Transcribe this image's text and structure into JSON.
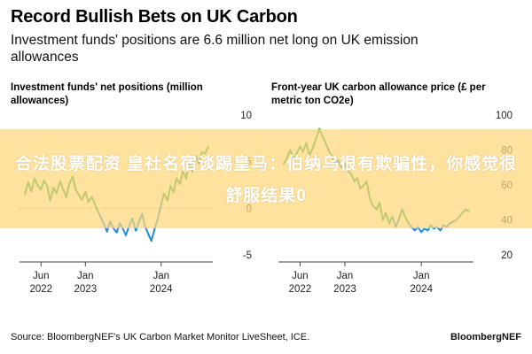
{
  "title": "Record Bullish Bets on UK Carbon",
  "subtitle": "Investment funds' positions are 6.6 million net long on UK emission allowances",
  "source": "Source: BloombergNEF's UK Carbon Market Monitor LiveSheet, ICE.",
  "brand": "BloombergNEF",
  "overlay_text": "合法股票配资 皇社名宿谈踢皇马：伯纳乌很有欺骗性，你感觉很舒服结果0",
  "colors": {
    "positive": "#25a55b",
    "negative": "#1f8fd4",
    "zero_line": "#888888"
  },
  "chart_data": [
    {
      "type": "line",
      "title": "Investment funds' net positions (million allowances)",
      "x_ticks": [
        {
          "label": [
            "Jun",
            "2022"
          ],
          "date": "2022-06-01"
        },
        {
          "label": [
            "Jan",
            "2023"
          ],
          "date": "2023-01-01"
        },
        {
          "label": [
            "Jan",
            "2024"
          ],
          "date": "2024-01-01"
        }
      ],
      "y_ticks": [
        10,
        5,
        0,
        -5
      ],
      "ylim": [
        -5,
        10
      ],
      "y_axis_side": "right",
      "series": [
        {
          "x": [
            "2022-03-15",
            "2022-04-01",
            "2022-04-15",
            "2022-05-01",
            "2022-05-15",
            "2022-06-01",
            "2022-06-15",
            "2022-07-01",
            "2022-07-15",
            "2022-08-01",
            "2022-08-15",
            "2022-09-01",
            "2022-09-15",
            "2022-10-01",
            "2022-10-15",
            "2022-11-01",
            "2022-11-15",
            "2022-12-01",
            "2022-12-15",
            "2023-01-01",
            "2023-01-15",
            "2023-02-01",
            "2023-02-15",
            "2023-03-01",
            "2023-03-15",
            "2023-04-01",
            "2023-04-15",
            "2023-05-01",
            "2023-05-15",
            "2023-06-01",
            "2023-06-15",
            "2023-07-01",
            "2023-07-15",
            "2023-08-01",
            "2023-08-15",
            "2023-09-01",
            "2023-09-15",
            "2023-10-01",
            "2023-10-15",
            "2023-11-01",
            "2023-11-15",
            "2023-12-01",
            "2023-12-15",
            "2024-01-01",
            "2024-01-15",
            "2024-02-01",
            "2024-02-15",
            "2024-03-01",
            "2024-03-15",
            "2024-04-01",
            "2024-04-15",
            "2024-05-01",
            "2024-05-15",
            "2024-06-01",
            "2024-06-15",
            "2024-07-01",
            "2024-07-15",
            "2024-08-01",
            "2024-08-15"
          ],
          "y": [
            1.5,
            2.8,
            1.8,
            3.2,
            2.5,
            2.0,
            3.0,
            2.4,
            0.8,
            2.2,
            1.6,
            2.9,
            2.1,
            1.2,
            2.6,
            3.4,
            2.0,
            1.4,
            0.9,
            1.8,
            0.7,
            1.2,
            0.5,
            -0.3,
            -0.9,
            -1.7,
            -2.5,
            -1.4,
            -2.1,
            -2.6,
            -1.6,
            -2.2,
            -2.9,
            -1.8,
            -1.1,
            -2.4,
            -1.5,
            -0.6,
            -1.9,
            -2.8,
            -3.5,
            -2.2,
            -1.2,
            0.4,
            1.6,
            0.8,
            2.4,
            1.7,
            3.2,
            2.6,
            4.0,
            3.2,
            4.9,
            3.9,
            5.6,
            4.8,
            6.0,
            5.9,
            6.6
          ]
        }
      ]
    },
    {
      "type": "line",
      "title": "Front-year UK carbon allowance price (£ per metric ton CO2e)",
      "x_ticks": [
        {
          "label": [
            "Jun",
            "2022"
          ],
          "date": "2022-06-01"
        },
        {
          "label": [
            "Jan",
            "2023"
          ],
          "date": "2023-01-01"
        },
        {
          "label": [
            "Jan",
            "2024"
          ],
          "date": "2024-01-01"
        }
      ],
      "y_ticks": [
        100,
        80,
        60,
        40,
        20
      ],
      "ylim": [
        20,
        100
      ],
      "y_axis_side": "right",
      "series": [
        {
          "x": [
            "2022-03-15",
            "2022-04-01",
            "2022-04-15",
            "2022-05-01",
            "2022-05-15",
            "2022-06-01",
            "2022-06-15",
            "2022-07-01",
            "2022-07-15",
            "2022-08-01",
            "2022-08-15",
            "2022-09-01",
            "2022-09-15",
            "2022-10-01",
            "2022-10-15",
            "2022-11-01",
            "2022-11-15",
            "2022-12-01",
            "2022-12-15",
            "2023-01-01",
            "2023-01-15",
            "2023-02-01",
            "2023-02-15",
            "2023-03-01",
            "2023-03-15",
            "2023-04-01",
            "2023-04-15",
            "2023-05-01",
            "2023-05-15",
            "2023-06-01",
            "2023-06-15",
            "2023-07-01",
            "2023-07-15",
            "2023-08-01",
            "2023-08-15",
            "2023-09-01",
            "2023-09-15",
            "2023-10-01",
            "2023-10-15",
            "2023-11-01",
            "2023-11-15",
            "2023-12-01",
            "2023-12-15",
            "2024-01-01",
            "2024-01-15",
            "2024-02-01",
            "2024-02-15",
            "2024-03-01",
            "2024-03-15",
            "2024-04-01",
            "2024-04-15",
            "2024-05-01",
            "2024-05-15",
            "2024-06-01",
            "2024-06-15",
            "2024-07-01",
            "2024-07-15",
            "2024-08-01",
            "2024-08-15"
          ],
          "y": [
            72,
            76,
            80,
            74,
            78,
            82,
            79,
            84,
            77,
            81,
            86,
            92,
            88,
            84,
            80,
            76,
            72,
            74,
            70,
            72,
            68,
            66,
            62,
            64,
            58,
            60,
            62,
            52,
            48,
            46,
            50,
            40,
            44,
            38,
            42,
            36,
            40,
            46,
            42,
            38,
            36,
            34,
            36,
            33,
            35,
            34,
            37,
            35,
            36,
            34,
            37,
            36,
            38,
            39,
            40,
            42,
            44,
            46,
            45
          ]
        }
      ]
    }
  ]
}
